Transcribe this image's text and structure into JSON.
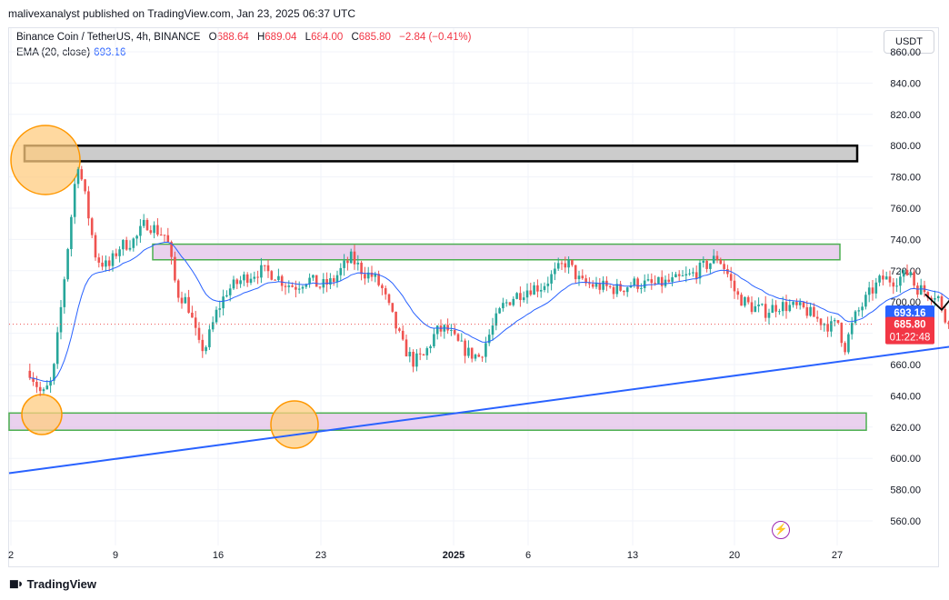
{
  "header": {
    "publisher_line": "malivexanalyst published on TradingView.com, Jan 23, 2025 06:37 UTC"
  },
  "legend": {
    "symbol": "Binance Coin / TetherUS, 4h, BINANCE",
    "o_label": "O",
    "o_value": "688.64",
    "h_label": "H",
    "h_value": "689.04",
    "l_label": "L",
    "l_value": "684.00",
    "c_label": "C",
    "c_value": "685.80",
    "change": "−2.84 (−0.41%)",
    "ema_label": "EMA (20, close)",
    "ema_value": "693.16"
  },
  "currency_button": "USDT",
  "badges": {
    "ema": {
      "value": "693.16",
      "color": "#2962ff"
    },
    "price": {
      "value": "685.80",
      "countdown": "01:22:48",
      "color": "#f23645"
    }
  },
  "footer": {
    "brand": "TradingView",
    "logo_icon": "tradingview-logo-icon"
  },
  "lightning_icon": "lightning-icon",
  "colors": {
    "up": "#089981",
    "up_candle": "#26a69a",
    "down": "#ef5350",
    "ema": "#2962ff",
    "zone_fill": "#e1bee7",
    "zone_border": "#4caf50",
    "circle_fill": "#ffcc80",
    "circle_border": "#ff9800",
    "trendline": "#2962ff",
    "projection": "#000000"
  },
  "chart_data": {
    "type": "candlestick",
    "timeframe": "4h",
    "y_axis": {
      "ylim": [
        552,
        866
      ],
      "ticks": [
        "560.00",
        "580.00",
        "600.00",
        "620.00",
        "640.00",
        "660.00",
        "680.00",
        "700.00",
        "720.00",
        "740.00",
        "760.00",
        "780.00",
        "800.00",
        "820.00",
        "840.00",
        "860.00"
      ]
    },
    "x_axis": {
      "ticks": [
        "2",
        "9",
        "16",
        "23",
        "2025",
        "6",
        "13",
        "20",
        "27"
      ]
    },
    "price_path": [
      [
        1.0,
        656
      ],
      [
        1.6,
        640
      ],
      [
        2.1,
        650
      ],
      [
        2.5,
        696
      ],
      [
        3.0,
        755
      ],
      [
        3.3,
        791
      ],
      [
        3.6,
        772
      ],
      [
        4.2,
        728
      ],
      [
        4.8,
        722
      ],
      [
        5.3,
        735
      ],
      [
        6.1,
        740
      ],
      [
        6.6,
        751
      ],
      [
        7.1,
        746
      ],
      [
        7.6,
        742
      ],
      [
        8.1,
        706
      ],
      [
        8.6,
        700
      ],
      [
        9.2,
        670
      ],
      [
        9.5,
        672
      ],
      [
        10.0,
        693
      ],
      [
        10.5,
        707
      ],
      [
        11.0,
        712
      ],
      [
        11.4,
        716
      ],
      [
        12.1,
        720
      ],
      [
        12.8,
        718
      ],
      [
        13.3,
        712
      ],
      [
        13.8,
        710
      ],
      [
        14.4,
        715
      ],
      [
        15.0,
        710
      ],
      [
        15.6,
        713
      ],
      [
        16.1,
        722
      ],
      [
        16.5,
        728
      ],
      [
        17.1,
        719
      ],
      [
        17.6,
        716
      ],
      [
        18.0,
        708
      ],
      [
        18.5,
        690
      ],
      [
        19.0,
        672
      ],
      [
        19.5,
        662
      ],
      [
        20.0,
        665
      ],
      [
        20.6,
        681
      ],
      [
        21.1,
        683
      ],
      [
        21.6,
        674
      ],
      [
        22.2,
        667
      ],
      [
        22.7,
        665
      ],
      [
        23.3,
        683
      ],
      [
        23.8,
        697
      ],
      [
        24.3,
        703
      ],
      [
        25.1,
        709
      ],
      [
        25.7,
        710
      ],
      [
        26.3,
        718
      ],
      [
        26.9,
        726
      ],
      [
        27.6,
        712
      ],
      [
        28.5,
        710
      ],
      [
        29.4,
        708
      ],
      [
        30.1,
        712
      ],
      [
        31.1,
        711
      ],
      [
        32.0,
        713
      ],
      [
        32.9,
        717
      ],
      [
        33.8,
        725
      ],
      [
        34.2,
        729
      ],
      [
        34.6,
        720
      ],
      [
        35.1,
        704
      ],
      [
        35.8,
        697
      ],
      [
        36.5,
        694
      ],
      [
        37.1,
        698
      ],
      [
        37.7,
        697
      ],
      [
        38.4,
        695
      ],
      [
        39.0,
        689
      ],
      [
        39.7,
        684
      ],
      [
        40.0,
        687
      ],
      [
        40.3,
        670
      ],
      [
        40.8,
        690
      ],
      [
        41.5,
        705
      ],
      [
        42.1,
        715
      ],
      [
        42.7,
        714
      ],
      [
        43.2,
        717
      ],
      [
        43.5,
        720
      ],
      [
        43.7,
        710
      ],
      [
        44.3,
        706
      ],
      [
        44.8,
        705
      ],
      [
        45.1,
        688
      ],
      [
        45.8,
        695
      ],
      [
        46.3,
        692
      ],
      [
        46.7,
        697
      ],
      [
        47.1,
        700
      ],
      [
        47.6,
        697
      ],
      [
        48.2,
        692
      ],
      [
        48.6,
        686
      ]
    ],
    "ema_20": {
      "name": "EMA (20, close)",
      "last": 693.16
    },
    "annotations": {
      "zones": [
        {
          "id": "resistance-top",
          "price_range": [
            790,
            800
          ]
        },
        {
          "id": "resistance-mid",
          "price_range": [
            727,
            737
          ]
        },
        {
          "id": "support-bottom",
          "price_range": [
            618,
            629
          ]
        }
      ],
      "trendline": {
        "from": [
          0.0,
          590.5
        ],
        "to": [
          50.5,
          680.5
        ]
      },
      "projection_path": [
        [
          44.2,
          705
        ],
        [
          45.0,
          695
        ],
        [
          46.0,
          711
        ],
        [
          46.9,
          707
        ],
        [
          48.0,
          735
        ],
        [
          49.3,
          724
        ],
        [
          51.1,
          790
        ]
      ],
      "circles": [
        "high-marker",
        "low-marker-1",
        "low-marker-2"
      ]
    }
  }
}
